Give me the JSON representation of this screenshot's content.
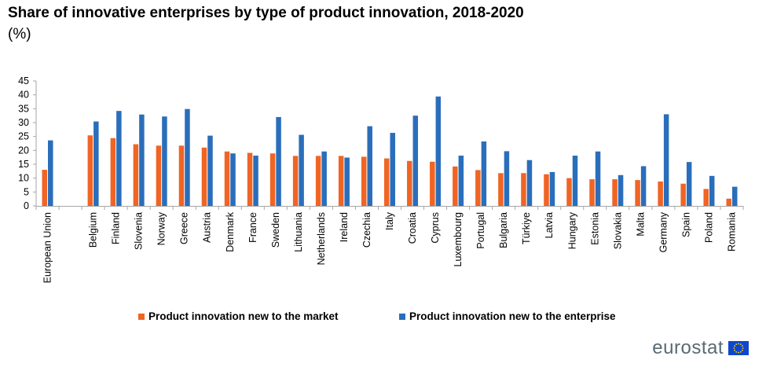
{
  "title": "Share of innovative enterprises by type of product innovation, 2018-2020",
  "subtitle": "(%)",
  "logo_text": "eurostat",
  "colors": {
    "market": "#f06424",
    "enterprise": "#2a6ebb",
    "axis": "#a6a6a6"
  },
  "chart_data": {
    "type": "bar",
    "ylim": [
      0,
      45
    ],
    "yticks": [
      0,
      5,
      10,
      15,
      20,
      25,
      30,
      35,
      40,
      45
    ],
    "grid": false,
    "legend_position": "bottom",
    "categories": [
      "European Union",
      "",
      "Belgium",
      "Finland",
      "Slovenia",
      "Norway",
      "Greece",
      "Austria",
      "Denmark",
      "France",
      "Sweden",
      "Lithuania",
      "Netherlands",
      "Ireland",
      "Czechia",
      "Italy",
      "Croatia",
      "Cyprus",
      "Luxembourg",
      "Portugal",
      "Bulgaria",
      "Türkiye",
      "Latvia",
      "Hungary",
      "Estonia",
      "Slovakia",
      "Malta",
      "Germany",
      "Spain",
      "Poland",
      "Romania"
    ],
    "series": [
      {
        "name": "Product innovation new to the market",
        "values": [
          13.0,
          null,
          25.4,
          24.4,
          22.2,
          21.7,
          21.7,
          21.0,
          19.6,
          19.1,
          18.9,
          18.0,
          18.0,
          18.0,
          17.7,
          17.1,
          16.2,
          15.9,
          14.2,
          12.9,
          11.8,
          11.8,
          11.4,
          10.0,
          9.6,
          9.6,
          9.3,
          8.8,
          8.0,
          6.1,
          2.6
        ]
      },
      {
        "name": "Product innovation new to the enterprise",
        "values": [
          23.6,
          null,
          30.4,
          34.2,
          32.9,
          32.2,
          34.9,
          25.3,
          18.9,
          18.1,
          32.0,
          25.6,
          19.6,
          17.4,
          28.7,
          26.3,
          32.5,
          39.4,
          18.1,
          23.2,
          19.7,
          16.5,
          12.2,
          18.1,
          19.6,
          11.1,
          14.3,
          33.0,
          15.8,
          10.8,
          6.9
        ]
      }
    ]
  }
}
